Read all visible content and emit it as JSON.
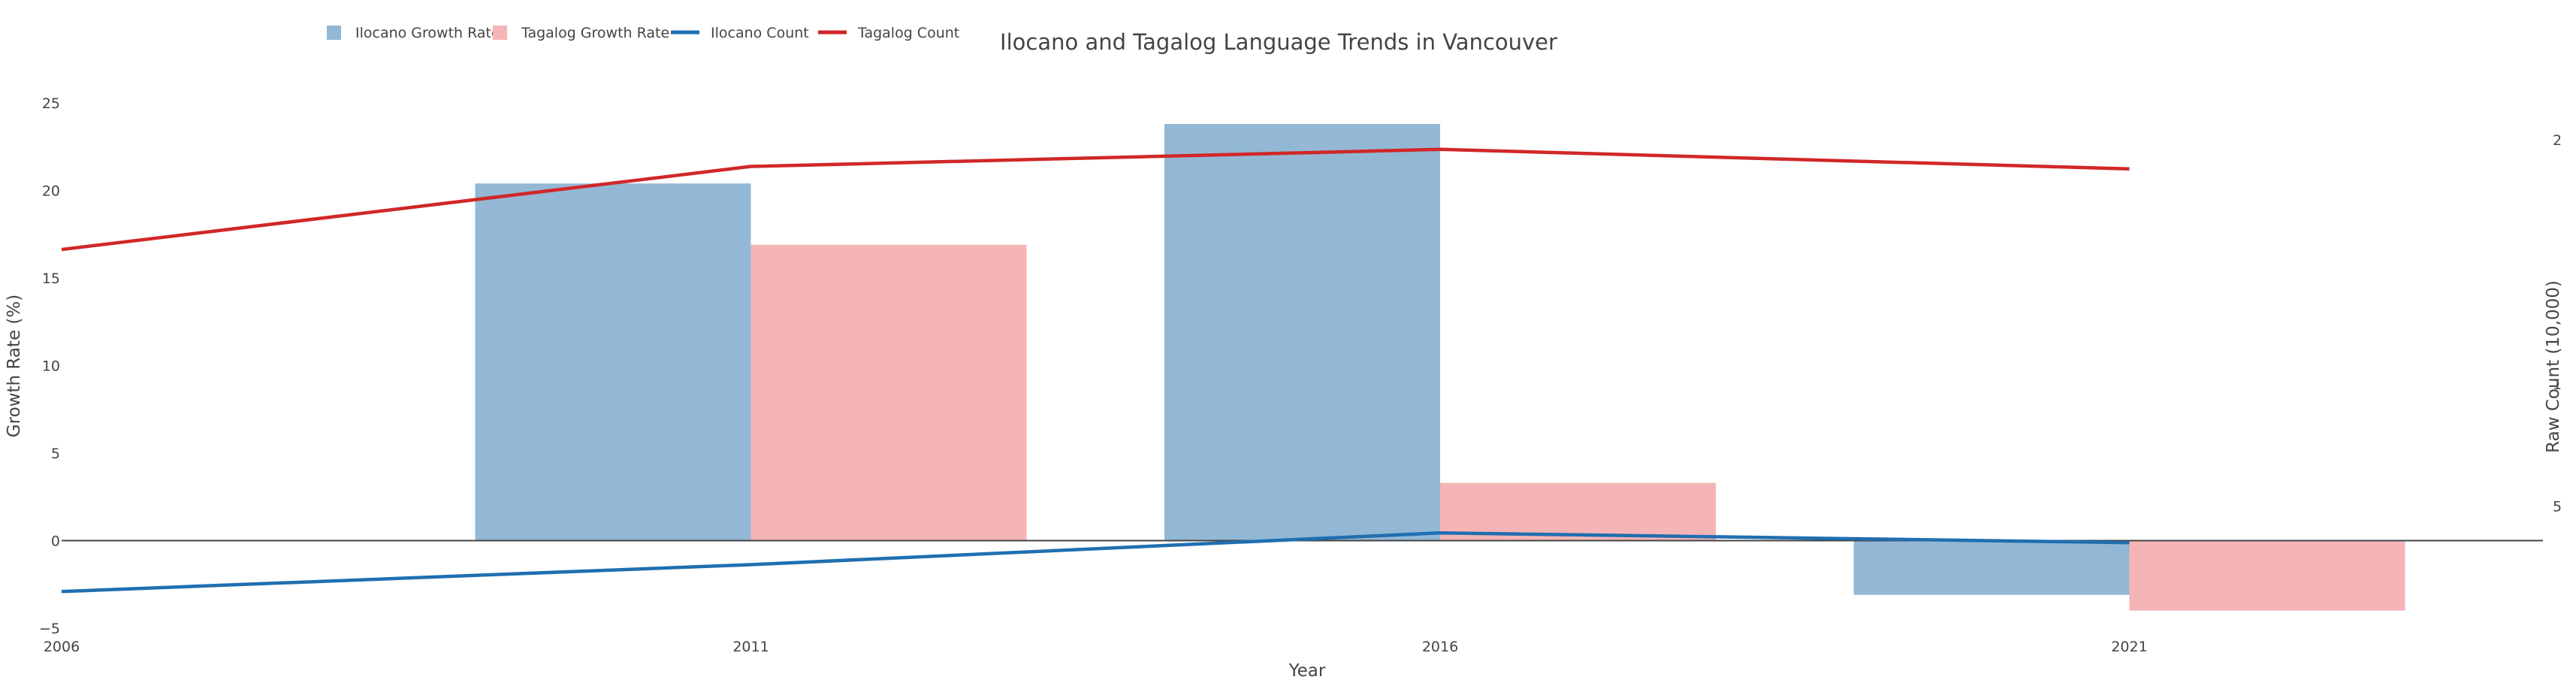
{
  "chart_data": {
    "type": "bar",
    "title": "Ilocano and Tagalog Language Trends in Vancouver",
    "xlabel": "Year",
    "ylabel": "Growth Rate (%)",
    "y2label": "Raw Count (10,000)",
    "x": [
      2006,
      2011,
      2016,
      2021
    ],
    "x_ticks": [
      "2006",
      "2011",
      "2016",
      "2021"
    ],
    "xlim": [
      2006,
      2024
    ],
    "ylim": [
      -5,
      25
    ],
    "y_ticks": [
      "−5",
      "0",
      "5",
      "10",
      "15",
      "20",
      "25"
    ],
    "y2lim": [
      0,
      2.15
    ],
    "y2_ticks_visible": [
      "5",
      "1",
      "2"
    ],
    "grid": false,
    "legend_position": "top-left",
    "series": [
      {
        "name": "Ilocano Growth Rate",
        "kind": "bar",
        "color": "#93b8d5",
        "values": [
          null,
          20.4,
          23.8,
          -3.1
        ]
      },
      {
        "name": "Tagalog Growth Rate",
        "kind": "bar",
        "color": "#f5b5b6",
        "values": [
          null,
          16.9,
          3.3,
          -4.0
        ]
      },
      {
        "name": "Ilocano Count",
        "kind": "line",
        "axis": "right",
        "color": "#1f6fb0",
        "values": [
          0.15,
          0.26,
          0.39,
          0.35
        ]
      },
      {
        "name": "Tagalog Count",
        "kind": "line",
        "axis": "right",
        "color": "#d12728",
        "values": [
          1.55,
          1.89,
          1.96,
          1.88
        ]
      }
    ]
  }
}
